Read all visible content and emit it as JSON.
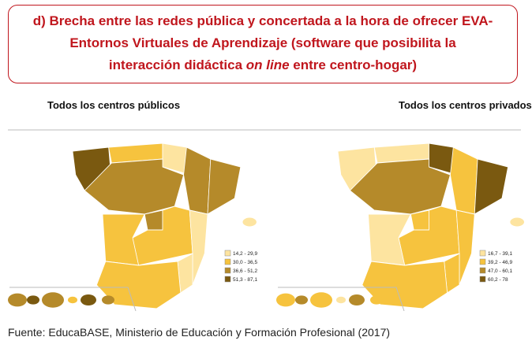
{
  "header": {
    "title_before": "d) Brecha entre las redes pública y concertada a la hora de ofrecer EVA-Entornos Virtuales de Aprendizaje (software que posibilita la interacción didáctica ",
    "title_italic": "on line",
    "title_after": " entre centro-hogar)"
  },
  "maps": [
    {
      "title": "Todos los centros públicos",
      "legend": [
        {
          "label": "14,2 - 29,9",
          "color": "#fde4a0"
        },
        {
          "label": "30,0 - 36,5",
          "color": "#f6c33e"
        },
        {
          "label": "36,6 - 51,2",
          "color": "#b58a2a"
        },
        {
          "label": "51,3 - 87,1",
          "color": "#7a5910"
        }
      ]
    },
    {
      "title": "Todos los centros privados",
      "legend": [
        {
          "label": "16,7 - 39,1",
          "color": "#fde4a0"
        },
        {
          "label": "39,2 - 46,9",
          "color": "#f6c33e"
        },
        {
          "label": "47,0 - 60,1",
          "color": "#b58a2a"
        },
        {
          "label": "60,2 - 78",
          "color": "#7a5910"
        }
      ]
    }
  ],
  "source": "Fuente: EducaBASE, Ministerio de Educación y Formación Profesional (2017)"
}
